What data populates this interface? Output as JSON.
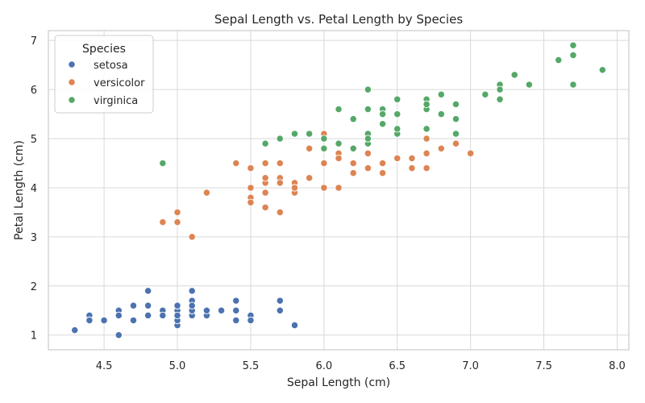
{
  "chart_data": {
    "type": "scatter",
    "title": "Sepal Length vs. Petal Length by Species",
    "xlabel": "Sepal Length (cm)",
    "ylabel": "Petal Length (cm)",
    "xlim": [
      4.12,
      8.08
    ],
    "ylim": [
      0.7,
      7.2
    ],
    "xticks": [
      4.5,
      5.0,
      5.5,
      6.0,
      6.5,
      7.0,
      7.5,
      8.0
    ],
    "xtick_labels": [
      "4.5",
      "5.0",
      "5.5",
      "6.0",
      "6.5",
      "7.0",
      "7.5",
      "8.0"
    ],
    "yticks": [
      1,
      2,
      3,
      4,
      5,
      6,
      7
    ],
    "ytick_labels": [
      "1",
      "2",
      "3",
      "4",
      "5",
      "6",
      "7"
    ],
    "grid": true,
    "legend": {
      "title": "Species",
      "placement": "top-left"
    },
    "series": [
      {
        "name": "setosa",
        "color": "#4c72b0",
        "points": [
          [
            5.1,
            1.4
          ],
          [
            4.9,
            1.4
          ],
          [
            4.7,
            1.3
          ],
          [
            4.6,
            1.5
          ],
          [
            5.0,
            1.4
          ],
          [
            5.4,
            1.7
          ],
          [
            4.6,
            1.4
          ],
          [
            5.0,
            1.5
          ],
          [
            4.4,
            1.4
          ],
          [
            4.9,
            1.5
          ],
          [
            5.4,
            1.5
          ],
          [
            4.8,
            1.6
          ],
          [
            4.8,
            1.4
          ],
          [
            4.3,
            1.1
          ],
          [
            5.8,
            1.2
          ],
          [
            5.7,
            1.5
          ],
          [
            5.4,
            1.3
          ],
          [
            5.1,
            1.4
          ],
          [
            5.7,
            1.7
          ],
          [
            5.1,
            1.5
          ],
          [
            5.4,
            1.7
          ],
          [
            5.1,
            1.5
          ],
          [
            4.6,
            1.0
          ],
          [
            5.1,
            1.7
          ],
          [
            4.8,
            1.9
          ],
          [
            5.0,
            1.6
          ],
          [
            5.0,
            1.6
          ],
          [
            5.2,
            1.5
          ],
          [
            5.2,
            1.4
          ],
          [
            4.7,
            1.6
          ],
          [
            4.8,
            1.6
          ],
          [
            5.4,
            1.5
          ],
          [
            5.2,
            1.5
          ],
          [
            5.5,
            1.4
          ],
          [
            4.9,
            1.5
          ],
          [
            5.0,
            1.2
          ],
          [
            5.5,
            1.3
          ],
          [
            4.9,
            1.4
          ],
          [
            4.4,
            1.3
          ],
          [
            5.1,
            1.5
          ],
          [
            5.0,
            1.3
          ],
          [
            4.5,
            1.3
          ],
          [
            4.4,
            1.3
          ],
          [
            5.0,
            1.6
          ],
          [
            5.1,
            1.9
          ],
          [
            4.8,
            1.4
          ],
          [
            5.1,
            1.6
          ],
          [
            4.6,
            1.4
          ],
          [
            5.3,
            1.5
          ],
          [
            5.0,
            1.4
          ]
        ]
      },
      {
        "name": "versicolor",
        "color": "#dd8452",
        "points": [
          [
            7.0,
            4.7
          ],
          [
            6.4,
            4.5
          ],
          [
            6.9,
            4.9
          ],
          [
            5.5,
            4.0
          ],
          [
            6.5,
            4.6
          ],
          [
            5.7,
            4.5
          ],
          [
            6.3,
            4.7
          ],
          [
            4.9,
            3.3
          ],
          [
            6.6,
            4.6
          ],
          [
            5.2,
            3.9
          ],
          [
            5.0,
            3.5
          ],
          [
            5.9,
            4.2
          ],
          [
            6.0,
            4.0
          ],
          [
            6.1,
            4.7
          ],
          [
            5.6,
            3.6
          ],
          [
            6.7,
            4.4
          ],
          [
            5.6,
            4.5
          ],
          [
            5.8,
            4.1
          ],
          [
            6.2,
            4.5
          ],
          [
            5.6,
            3.9
          ],
          [
            5.9,
            4.8
          ],
          [
            6.1,
            4.0
          ],
          [
            6.3,
            4.9
          ],
          [
            6.1,
            4.7
          ],
          [
            6.4,
            4.3
          ],
          [
            6.6,
            4.4
          ],
          [
            6.8,
            4.8
          ],
          [
            6.7,
            5.0
          ],
          [
            6.0,
            4.5
          ],
          [
            5.7,
            3.5
          ],
          [
            5.5,
            3.8
          ],
          [
            5.5,
            3.7
          ],
          [
            5.8,
            3.9
          ],
          [
            6.0,
            5.1
          ],
          [
            5.4,
            4.5
          ],
          [
            6.0,
            4.5
          ],
          [
            6.7,
            4.7
          ],
          [
            6.3,
            4.4
          ],
          [
            5.6,
            4.1
          ],
          [
            5.5,
            4.0
          ],
          [
            5.5,
            4.4
          ],
          [
            6.1,
            4.6
          ],
          [
            5.8,
            4.0
          ],
          [
            5.0,
            3.3
          ],
          [
            5.6,
            4.2
          ],
          [
            5.7,
            4.2
          ],
          [
            5.7,
            4.2
          ],
          [
            6.2,
            4.3
          ],
          [
            5.1,
            3.0
          ],
          [
            5.7,
            4.1
          ]
        ]
      },
      {
        "name": "virginica",
        "color": "#55a868",
        "points": [
          [
            6.3,
            6.0
          ],
          [
            5.8,
            5.1
          ],
          [
            7.1,
            5.9
          ],
          [
            6.3,
            5.6
          ],
          [
            6.5,
            5.8
          ],
          [
            7.6,
            6.6
          ],
          [
            4.9,
            4.5
          ],
          [
            7.3,
            6.3
          ],
          [
            6.7,
            5.8
          ],
          [
            7.2,
            6.1
          ],
          [
            6.5,
            5.1
          ],
          [
            6.4,
            5.3
          ],
          [
            6.8,
            5.5
          ],
          [
            5.7,
            5.0
          ],
          [
            5.8,
            5.1
          ],
          [
            6.4,
            5.3
          ],
          [
            6.5,
            5.5
          ],
          [
            7.7,
            6.7
          ],
          [
            7.7,
            6.9
          ],
          [
            6.0,
            5.0
          ],
          [
            6.9,
            5.7
          ],
          [
            5.6,
            4.9
          ],
          [
            7.7,
            6.7
          ],
          [
            6.3,
            4.9
          ],
          [
            6.7,
            5.7
          ],
          [
            7.2,
            6.0
          ],
          [
            6.2,
            4.8
          ],
          [
            6.1,
            4.9
          ],
          [
            6.4,
            5.6
          ],
          [
            7.2,
            5.8
          ],
          [
            7.4,
            6.1
          ],
          [
            7.9,
            6.4
          ],
          [
            6.4,
            5.6
          ],
          [
            6.3,
            5.1
          ],
          [
            6.1,
            5.6
          ],
          [
            7.7,
            6.1
          ],
          [
            6.3,
            5.6
          ],
          [
            6.4,
            5.5
          ],
          [
            6.0,
            4.8
          ],
          [
            6.9,
            5.4
          ],
          [
            6.7,
            5.6
          ],
          [
            6.9,
            5.1
          ],
          [
            5.8,
            5.1
          ],
          [
            6.8,
            5.9
          ],
          [
            6.7,
            5.7
          ],
          [
            6.7,
            5.2
          ],
          [
            6.3,
            5.0
          ],
          [
            6.5,
            5.2
          ],
          [
            6.2,
            5.4
          ],
          [
            5.9,
            5.1
          ]
        ]
      }
    ]
  }
}
